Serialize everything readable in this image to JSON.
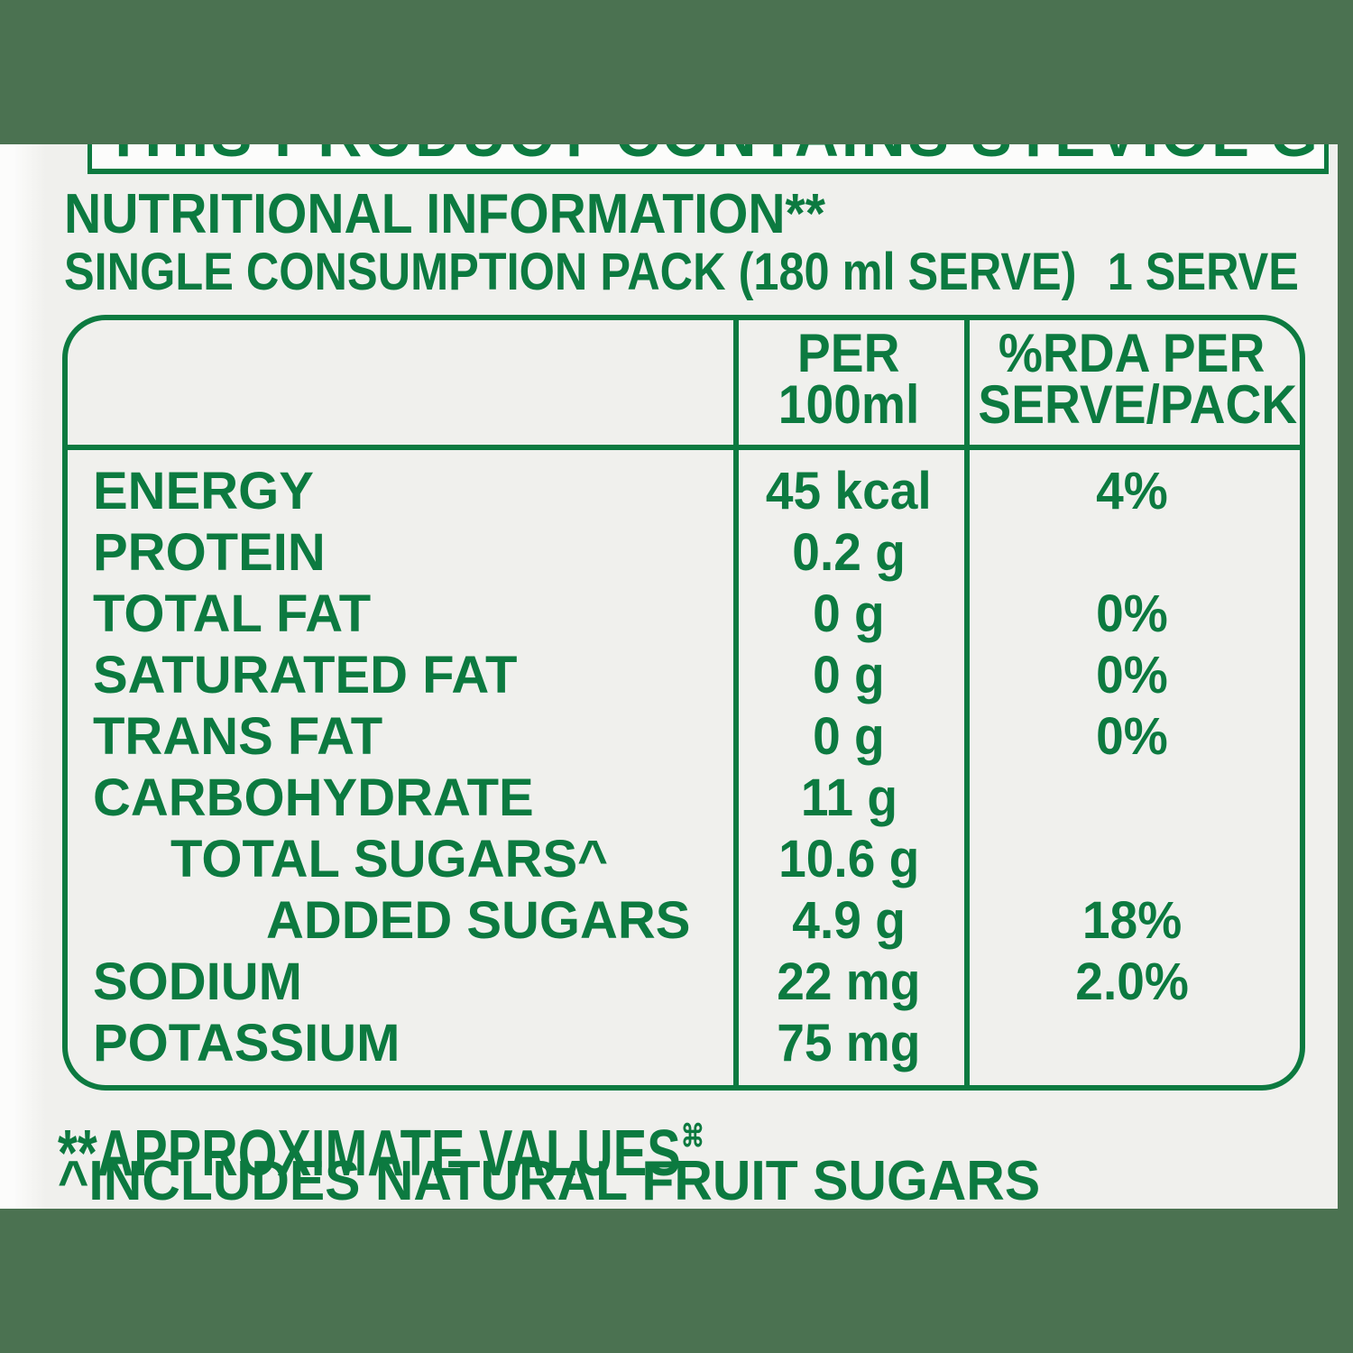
{
  "colors": {
    "accent_green": "#0c7a40",
    "band_green": "#4b7251",
    "label_background": "#f0f0ed"
  },
  "top_banner": {
    "text": "THIS PRODUCT CONTAINS STEVIOL GLYCOSIDE"
  },
  "header": {
    "title": "NUTRITIONAL INFORMATION**",
    "subtitle": "SINGLE CONSUMPTION PACK (180 ml SERVE)",
    "serves": "1 SERVE"
  },
  "table": {
    "header": {
      "per_line1": "PER",
      "per_line2": "100ml",
      "rda_line1": "%RDA PER",
      "rda_line2": "SERVE/PACK"
    },
    "rows": [
      {
        "label": "ENERGY",
        "per_100ml": "45 kcal",
        "rda_per_serve": "4%"
      },
      {
        "label": "PROTEIN",
        "per_100ml": "0.2 g",
        "rda_per_serve": ""
      },
      {
        "label": "TOTAL FAT",
        "per_100ml": "0 g",
        "rda_per_serve": "0%"
      },
      {
        "label": "SATURATED FAT",
        "per_100ml": "0 g",
        "rda_per_serve": "0%"
      },
      {
        "label": "TRANS FAT",
        "per_100ml": "0 g",
        "rda_per_serve": "0%"
      },
      {
        "label": "CARBOHYDRATE",
        "per_100ml": "11 g",
        "rda_per_serve": ""
      },
      {
        "label": "TOTAL SUGARS^",
        "per_100ml": "10.6 g",
        "rda_per_serve": ""
      },
      {
        "label": "ADDED SUGARS",
        "per_100ml": "4.9 g",
        "rda_per_serve": "18%"
      },
      {
        "label": "SODIUM",
        "per_100ml": "22 mg",
        "rda_per_serve": "2.0%"
      },
      {
        "label": "POTASSIUM",
        "per_100ml": "75 mg",
        "rda_per_serve": ""
      }
    ]
  },
  "footnotes": {
    "approximate": "**APPROXIMATE VALUES",
    "approximate_sup": "⌘",
    "includes": "^INCLUDES NATURAL FRUIT SUGARS"
  }
}
